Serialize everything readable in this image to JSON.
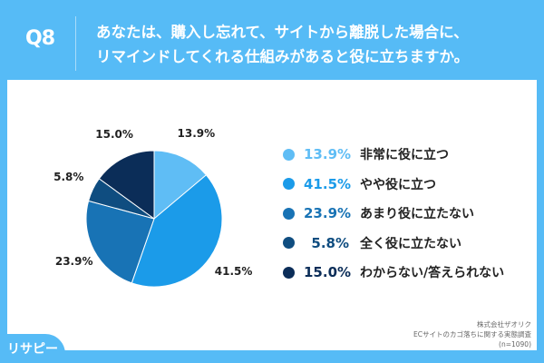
{
  "header": {
    "question_no": "Q8",
    "title_line1": "あなたは、購入し忘れて、サイトから離脱した場合に、",
    "title_line2": "リマインドしてくれる仕組みがあると役に立ちますか。"
  },
  "chart_data": {
    "type": "pie",
    "start": "top, clockwise",
    "categories": [
      "非常に役に立つ",
      "やや役に立つ",
      "あまり役に立たない",
      "全く役に立たない",
      "わからない/答えられない"
    ],
    "values": [
      13.9,
      41.5,
      23.9,
      5.8,
      15.0
    ],
    "labels": [
      "13.9%",
      "41.5%",
      "23.9%",
      "5.8%",
      "15.0%"
    ],
    "colors": [
      "#5fbdf5",
      "#1b9be9",
      "#1873b5",
      "#0f4d80",
      "#0b2d58"
    ],
    "legend_placement": "right"
  },
  "footer": {
    "company": "株式会社ザオリク",
    "survey": "ECサイトのカゴ落ちに関する実態調査",
    "sample": "(n=1090)",
    "logo": "リサピー"
  }
}
